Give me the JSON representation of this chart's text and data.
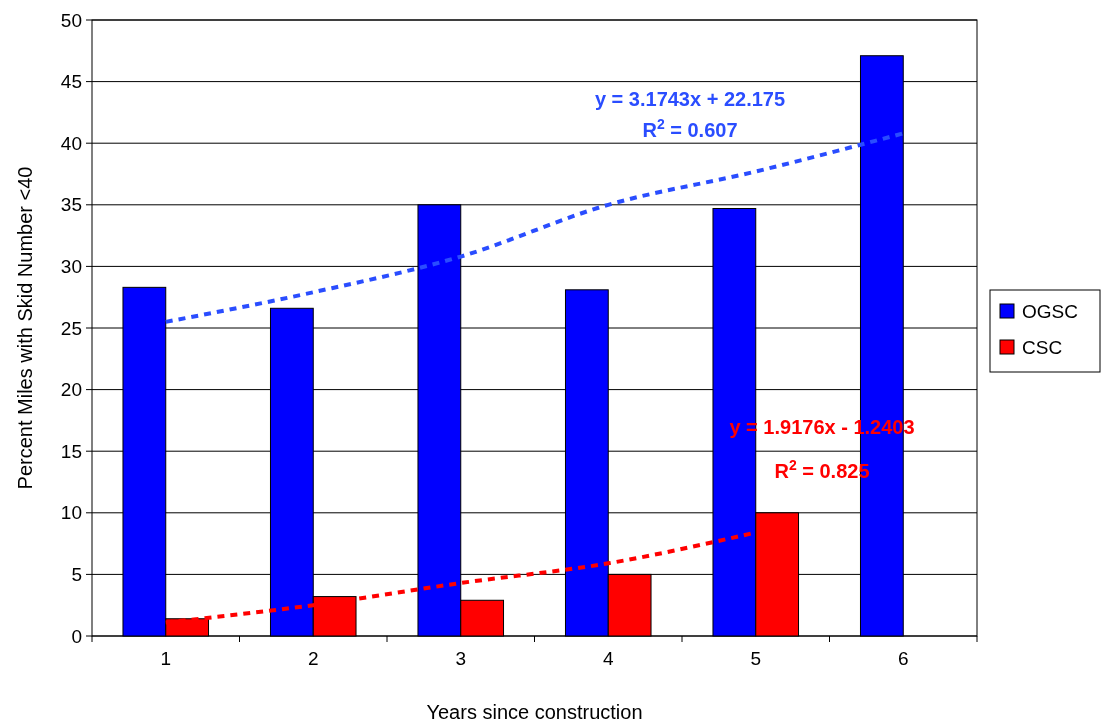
{
  "chart_data": {
    "type": "bar",
    "xlabel": "Years since construction",
    "ylabel": "Percent Miles with Skid Number <40",
    "categories": [
      "1",
      "2",
      "3",
      "4",
      "5",
      "6"
    ],
    "series": [
      {
        "name": "OGSC",
        "color": "#0000ff",
        "values": [
          28.3,
          26.6,
          35.0,
          28.1,
          34.7,
          47.1
        ]
      },
      {
        "name": "CSC",
        "color": "#ff0000",
        "values": [
          1.4,
          3.2,
          2.9,
          5.0,
          10.0,
          null
        ]
      },
      {
        "type": "line",
        "color": "#2a4dff",
        "line_style": "dashed",
        "x": [
          "1",
          "2",
          "3",
          "4",
          "5",
          "6"
        ],
        "values": [
          25.5,
          27.9,
          30.8,
          35.0,
          37.7,
          40.8
        ]
      },
      {
        "type": "line",
        "color": "#ff0000",
        "line_style": "dashed",
        "x": [
          "1",
          "2",
          "3",
          "4",
          "5"
        ],
        "values": [
          1.1,
          2.5,
          4.3,
          5.9,
          8.4
        ]
      }
    ],
    "annotations": [
      "y = 3.1743x + 22.175",
      "R$^{2}$ = 0.607",
      "y = 1.9176x - 1.2403",
      "R$^{2}$ = 0.825"
    ],
    "ylim": [
      0,
      50
    ],
    "yticks": [
      0,
      5,
      10,
      15,
      20,
      25,
      30,
      35,
      40,
      45,
      50
    ],
    "grid": "y",
    "legend": "right"
  }
}
